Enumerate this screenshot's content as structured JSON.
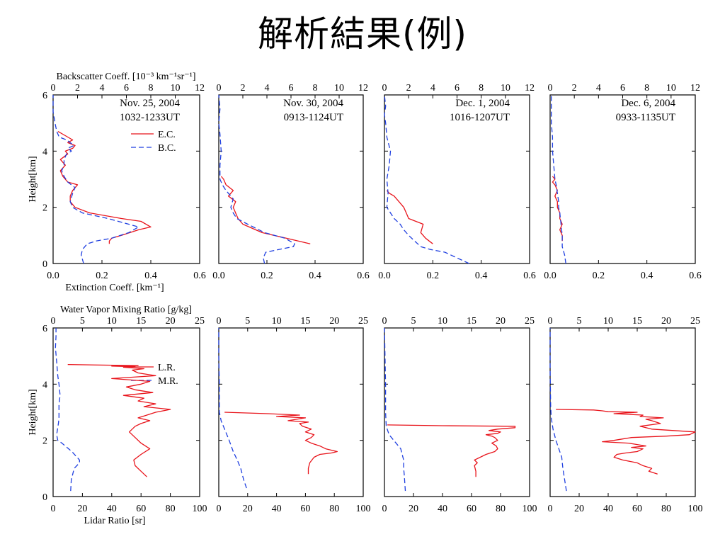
{
  "slide": {
    "title": "解析結果(例)"
  },
  "colors": {
    "red_series": "#e8141b",
    "blue_series": "#1f3fe0",
    "axis": "#000000",
    "background": "#ffffff"
  },
  "chart_data": [
    {
      "type": "line",
      "row": "top",
      "panel": "nov25",
      "title": [
        "Nov. 25, 2004",
        "1032-1233UT"
      ],
      "top_axis_label": "Backscatter Coeff. [10⁻³ km⁻¹sr⁻¹]",
      "bottom_axis_label": "Extinction Coeff. [km⁻¹]",
      "ylabel": "Height[km]",
      "xlim_bottom": [
        0,
        0.6
      ],
      "xlim_top": [
        0,
        12
      ],
      "ylim": [
        0,
        6
      ],
      "xticks_bottom": [
        "0.0",
        "0.2",
        "0.4",
        "0.6"
      ],
      "xticks_top": [
        "0",
        "2",
        "4",
        "6",
        "8",
        "10",
        "12"
      ],
      "yticks": [
        "0",
        "2",
        "4",
        "6"
      ],
      "legend": [
        "E.C.",
        "B.C."
      ],
      "legend_position": "upper-middle",
      "series": [
        {
          "name": "E.C.",
          "axis": "bottom",
          "style": "solid",
          "color": "red",
          "x": [
            0.23,
            0.23,
            0.24,
            0.28,
            0.35,
            0.4,
            0.36,
            0.28,
            0.15,
            0.09,
            0.07,
            0.07,
            0.08,
            0.1,
            0.06,
            0.04,
            0.03,
            0.05,
            0.03,
            0.06,
            0.05,
            0.08,
            0.09,
            0.06,
            0.08,
            0.06,
            0.04,
            0.02
          ],
          "y": [
            0.7,
            0.8,
            0.9,
            1.0,
            1.2,
            1.3,
            1.5,
            1.6,
            1.8,
            2.0,
            2.2,
            2.4,
            2.6,
            2.8,
            2.9,
            3.1,
            3.3,
            3.5,
            3.7,
            3.9,
            4.0,
            4.1,
            4.2,
            4.3,
            4.4,
            4.5,
            4.6,
            4.7
          ]
        },
        {
          "name": "B.C.",
          "axis": "top",
          "style": "dashed",
          "color": "blue",
          "x": [
            2.5,
            2.3,
            2.4,
            2.8,
            3.5,
            4.8,
            6.2,
            7.0,
            4.5,
            2.4,
            1.6,
            1.4,
            1.6,
            1.8,
            1.2,
            0.9,
            0.7,
            0.9,
            0.9,
            1.1,
            1.5,
            1.2,
            1.7,
            1.4,
            1.1,
            0.5,
            0.3,
            0.2,
            0.0,
            0.0
          ],
          "y": [
            0.0,
            0.3,
            0.5,
            0.7,
            0.8,
            0.9,
            1.1,
            1.3,
            1.6,
            1.8,
            2.0,
            2.2,
            2.5,
            2.7,
            2.9,
            3.1,
            3.3,
            3.5,
            3.7,
            3.9,
            4.0,
            4.1,
            4.2,
            4.3,
            4.4,
            4.5,
            4.7,
            4.9,
            5.4,
            6.0
          ]
        }
      ]
    },
    {
      "type": "line",
      "row": "top",
      "panel": "nov30",
      "title": [
        "Nov. 30, 2004",
        "0913-1124UT"
      ],
      "xlim_bottom": [
        0,
        0.6
      ],
      "xlim_top": [
        0,
        12
      ],
      "ylim": [
        0,
        6
      ],
      "xticks_bottom": [
        "0.0",
        "0.2",
        "0.4",
        "0.6"
      ],
      "xticks_top": [
        "0",
        "2",
        "4",
        "6",
        "8",
        "10",
        "12"
      ],
      "series": [
        {
          "name": "E.C.",
          "axis": "bottom",
          "style": "solid",
          "color": "red",
          "x": [
            0.38,
            0.28,
            0.18,
            0.1,
            0.08,
            0.07,
            0.06,
            0.07,
            0.04,
            0.06,
            0.03,
            0.02,
            0.01
          ],
          "y": [
            0.7,
            0.9,
            1.1,
            1.4,
            1.6,
            1.8,
            2.0,
            2.2,
            2.4,
            2.6,
            2.8,
            3.0,
            3.1
          ]
        },
        {
          "name": "B.C.",
          "axis": "top",
          "style": "dashed",
          "color": "blue",
          "x": [
            3.8,
            3.7,
            3.9,
            5.0,
            6.2,
            6.3,
            5.5,
            3.8,
            2.4,
            1.5,
            1.2,
            1.0,
            1.2,
            0.6,
            0.3,
            0.1,
            0.1,
            0.2,
            0.1,
            0.0,
            0.1,
            0.0
          ],
          "y": [
            0.0,
            0.2,
            0.4,
            0.5,
            0.6,
            0.7,
            0.9,
            1.1,
            1.4,
            1.6,
            1.8,
            2.0,
            2.3,
            2.6,
            2.8,
            3.0,
            3.5,
            4.0,
            4.6,
            5.0,
            5.5,
            6.0
          ]
        }
      ]
    },
    {
      "type": "line",
      "row": "top",
      "panel": "dec1",
      "title": [
        "Dec. 1, 2004",
        "1016-1207UT"
      ],
      "xlim_bottom": [
        0,
        0.6
      ],
      "xlim_top": [
        0,
        12
      ],
      "ylim": [
        0,
        6
      ],
      "xticks_bottom": [
        "0.0",
        "0.2",
        "0.4",
        "0.6"
      ],
      "xticks_top": [
        "0",
        "2",
        "4",
        "6",
        "8",
        "10",
        "12"
      ],
      "series": [
        {
          "name": "E.C.",
          "axis": "bottom",
          "style": "solid",
          "color": "red",
          "x": [
            0.2,
            0.17,
            0.15,
            0.16,
            0.13,
            0.1,
            0.09,
            0.08,
            0.06,
            0.04,
            0.02,
            0.01
          ],
          "y": [
            0.7,
            0.9,
            1.1,
            1.4,
            1.5,
            1.6,
            1.8,
            2.0,
            2.2,
            2.4,
            2.5,
            2.6
          ]
        },
        {
          "name": "B.C.",
          "axis": "top",
          "style": "dashed",
          "color": "blue",
          "x": [
            7.0,
            6.0,
            5.0,
            3.8,
            3.0,
            2.5,
            2.0,
            1.6,
            1.3,
            0.8,
            0.2,
            0.3,
            0.2,
            0.4,
            0.5,
            0.2,
            0.1,
            0.0,
            0.1,
            0.0
          ],
          "y": [
            0.0,
            0.2,
            0.4,
            0.5,
            0.6,
            0.8,
            1.0,
            1.2,
            1.4,
            1.6,
            2.0,
            2.5,
            3.0,
            3.5,
            4.0,
            4.5,
            5.0,
            5.3,
            5.6,
            6.0
          ]
        }
      ]
    },
    {
      "type": "line",
      "row": "top",
      "panel": "dec6",
      "title": [
        "Dec. 6, 2004",
        "0933-1135UT"
      ],
      "xlim_bottom": [
        0,
        0.6
      ],
      "xlim_top": [
        0,
        12
      ],
      "ylim": [
        0,
        6
      ],
      "xticks_bottom": [
        "0.0",
        "0.2",
        "0.4",
        "0.6"
      ],
      "xticks_top": [
        "0",
        "2",
        "4",
        "6",
        "8",
        "10",
        "12"
      ],
      "series": [
        {
          "name": "E.C.",
          "axis": "bottom",
          "style": "solid",
          "color": "red",
          "x": [
            0.05,
            0.05,
            0.04,
            0.05,
            0.04,
            0.04,
            0.03,
            0.03,
            0.02,
            0.03,
            0.02,
            0.01,
            0.02,
            0.01
          ],
          "y": [
            0.8,
            1.0,
            1.2,
            1.4,
            1.6,
            1.8,
            2.0,
            2.2,
            2.4,
            2.6,
            2.8,
            2.9,
            3.0,
            3.1
          ]
        },
        {
          "name": "B.C.",
          "axis": "top",
          "style": "dashed",
          "color": "blue",
          "x": [
            1.3,
            1.2,
            1.0,
            1.0,
            0.9,
            0.8,
            0.7,
            0.7,
            0.6,
            0.5,
            0.4,
            0.3,
            0.2,
            0.2,
            0.1,
            0.1
          ],
          "y": [
            0.0,
            0.3,
            0.6,
            1.0,
            1.4,
            1.8,
            2.0,
            2.2,
            2.5,
            2.8,
            3.0,
            3.5,
            4.0,
            4.5,
            5.0,
            6.0
          ]
        }
      ]
    },
    {
      "type": "line",
      "row": "bottom",
      "panel": "nov25",
      "top_axis_label": "Water Vapor Mixing Ratio [g/kg]",
      "bottom_axis_label": "Lidar Ratio [sr]",
      "ylabel": "Height[km]",
      "xlim_bottom": [
        0,
        100
      ],
      "xlim_top": [
        0,
        25
      ],
      "ylim": [
        0,
        6
      ],
      "xticks_bottom": [
        "0",
        "20",
        "40",
        "60",
        "80",
        "100"
      ],
      "xticks_top": [
        "0",
        "5",
        "10",
        "15",
        "20",
        "25"
      ],
      "yticks": [
        "0",
        "2",
        "4",
        "6"
      ],
      "legend": [
        "L.R.",
        "M.R."
      ],
      "legend_position": "upper-middle",
      "series": [
        {
          "name": "L.R.",
          "axis": "bottom",
          "style": "solid",
          "color": "red",
          "x": [
            64,
            60,
            56,
            55,
            60,
            66,
            60,
            56,
            52,
            56,
            60,
            66,
            58,
            64,
            70,
            80,
            62,
            70,
            58,
            62,
            48,
            68,
            56,
            50,
            60,
            66,
            40,
            70,
            58,
            54,
            62,
            48,
            56,
            40,
            58,
            10
          ],
          "y": [
            0.7,
            0.9,
            1.1,
            1.3,
            1.5,
            1.7,
            1.9,
            2.1,
            2.3,
            2.5,
            2.6,
            2.7,
            2.8,
            2.9,
            3.0,
            3.1,
            3.2,
            3.3,
            3.4,
            3.5,
            3.6,
            3.7,
            3.8,
            3.9,
            4.0,
            4.1,
            4.2,
            4.3,
            4.4,
            4.5,
            4.55,
            4.6,
            4.62,
            4.64,
            4.66,
            4.7
          ]
        },
        {
          "name": "M.R.",
          "axis": "top",
          "style": "dashed",
          "color": "blue",
          "x": [
            3.0,
            3.1,
            3.6,
            4.5,
            4.5,
            3.2,
            1.5,
            0.8,
            0.6,
            0.9,
            1.0,
            1.0,
            1.0,
            1.2,
            1.0,
            0.8,
            0.6,
            0.4,
            0.5,
            0.5
          ],
          "y": [
            0.2,
            0.6,
            1.0,
            1.2,
            1.3,
            1.6,
            1.9,
            2.0,
            2.2,
            2.6,
            2.8,
            3.0,
            3.3,
            3.6,
            4.0,
            4.3,
            4.8,
            5.3,
            5.7,
            6.0
          ]
        }
      ]
    },
    {
      "type": "line",
      "row": "bottom",
      "panel": "nov30",
      "xlim_bottom": [
        0,
        100
      ],
      "xlim_top": [
        0,
        25
      ],
      "ylim": [
        0,
        6
      ],
      "xticks_bottom": [
        "0",
        "20",
        "40",
        "60",
        "80",
        "100"
      ],
      "xticks_top": [
        "0",
        "5",
        "10",
        "15",
        "20",
        "25"
      ],
      "series": [
        {
          "name": "L.R.",
          "axis": "bottom",
          "style": "solid",
          "color": "red",
          "x": [
            62,
            62,
            63,
            66,
            70,
            78,
            82,
            74,
            70,
            64,
            60,
            64,
            66,
            60,
            64,
            58,
            56,
            62,
            48,
            60,
            40,
            56,
            34,
            4
          ],
          "y": [
            0.8,
            1.0,
            1.2,
            1.4,
            1.5,
            1.55,
            1.6,
            1.7,
            1.8,
            1.9,
            2.0,
            2.1,
            2.2,
            2.3,
            2.4,
            2.5,
            2.6,
            2.65,
            2.7,
            2.8,
            2.85,
            2.9,
            2.95,
            3.0
          ]
        },
        {
          "name": "M.R.",
          "axis": "top",
          "style": "dashed",
          "color": "blue",
          "x": [
            4.8,
            4.3,
            3.8,
            3.2,
            2.5,
            1.8,
            1.0,
            0.4,
            0.1,
            0.1,
            0.0,
            0.0
          ],
          "y": [
            0.3,
            0.6,
            1.0,
            1.3,
            1.6,
            2.0,
            2.4,
            2.7,
            3.0,
            4.0,
            5.0,
            6.0
          ]
        }
      ]
    },
    {
      "type": "line",
      "row": "bottom",
      "panel": "dec1",
      "xlim_bottom": [
        0,
        100
      ],
      "xlim_top": [
        0,
        25
      ],
      "ylim": [
        0,
        6
      ],
      "xticks_bottom": [
        "0",
        "20",
        "40",
        "60",
        "80",
        "100"
      ],
      "xticks_top": [
        "0",
        "5",
        "10",
        "15",
        "20",
        "25"
      ],
      "series": [
        {
          "name": "L.R.",
          "axis": "bottom",
          "style": "solid",
          "color": "red",
          "x": [
            63,
            63,
            62,
            64,
            62,
            66,
            70,
            76,
            78,
            77,
            74,
            78,
            76,
            74,
            70,
            78,
            80,
            72,
            78,
            90,
            90,
            40,
            2
          ],
          "y": [
            0.7,
            0.9,
            1.1,
            1.2,
            1.3,
            1.4,
            1.5,
            1.6,
            1.7,
            1.8,
            1.9,
            2.0,
            2.1,
            2.15,
            2.2,
            2.25,
            2.3,
            2.35,
            2.4,
            2.45,
            2.5,
            2.52,
            2.55
          ]
        },
        {
          "name": "M.R.",
          "axis": "top",
          "style": "dashed",
          "color": "blue",
          "x": [
            3.6,
            3.5,
            3.4,
            3.3,
            3.3,
            2.8,
            2.0,
            0.8,
            0.3,
            0.2,
            0.2,
            0.1,
            0.0
          ],
          "y": [
            0.2,
            0.5,
            0.8,
            1.0,
            1.3,
            1.7,
            1.9,
            2.2,
            2.5,
            3.0,
            4.0,
            5.0,
            6.0
          ]
        }
      ]
    },
    {
      "type": "line",
      "row": "bottom",
      "panel": "dec6",
      "xlim_bottom": [
        0,
        100
      ],
      "xlim_top": [
        0,
        25
      ],
      "ylim": [
        0,
        6
      ],
      "xticks_bottom": [
        "0",
        "20",
        "40",
        "60",
        "80",
        "100"
      ],
      "xticks_top": [
        "0",
        "5",
        "10",
        "15",
        "20",
        "25"
      ],
      "series": [
        {
          "name": "L.R.",
          "axis": "bottom",
          "style": "solid",
          "color": "red",
          "x": [
            74,
            68,
            70,
            64,
            60,
            50,
            44,
            46,
            52,
            60,
            64,
            56,
            66,
            60,
            54,
            36,
            44,
            50,
            56,
            80,
            96,
            100,
            70,
            62,
            76,
            70,
            66,
            78,
            62,
            64,
            44,
            60,
            40,
            36,
            30,
            4
          ],
          "y": [
            0.8,
            0.9,
            1.0,
            1.1,
            1.2,
            1.3,
            1.4,
            1.5,
            1.55,
            1.6,
            1.7,
            1.75,
            1.8,
            1.85,
            1.9,
            1.95,
            2.0,
            2.05,
            2.1,
            2.15,
            2.2,
            2.3,
            2.4,
            2.5,
            2.6,
            2.7,
            2.75,
            2.8,
            2.85,
            2.9,
            2.95,
            3.0,
            3.02,
            3.05,
            3.08,
            3.1
          ]
        },
        {
          "name": "M.R.",
          "axis": "top",
          "style": "dashed",
          "color": "blue",
          "x": [
            2.8,
            2.5,
            2.2,
            2.0,
            1.5,
            1.0,
            0.5,
            0.2,
            0.1,
            0.0,
            0.0
          ],
          "y": [
            0.2,
            0.6,
            1.0,
            1.4,
            1.7,
            2.0,
            2.4,
            2.8,
            3.2,
            4.5,
            6.0
          ]
        }
      ]
    }
  ]
}
